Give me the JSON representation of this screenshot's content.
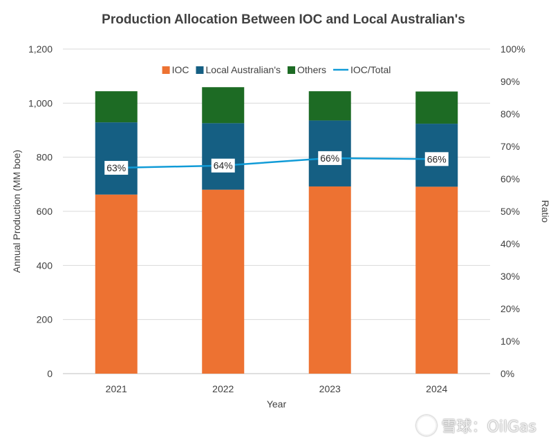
{
  "chart_data": {
    "type": "bar",
    "stacked": true,
    "title": "Production Allocation Between IOC and Local Australian's",
    "xlabel": "Year",
    "ylabel": "Annual Production (MM boe)",
    "y2label": "Ratio",
    "categories": [
      "2021",
      "2022",
      "2023",
      "2024"
    ],
    "ylim": [
      0,
      1200
    ],
    "yticks": [
      "0",
      "200",
      "400",
      "600",
      "800",
      "1,000",
      "1,200"
    ],
    "y2lim": [
      0,
      100
    ],
    "y2ticks": [
      "0%",
      "10%",
      "20%",
      "30%",
      "40%",
      "50%",
      "60%",
      "70%",
      "80%",
      "90%",
      "100%"
    ],
    "legend_position": "top",
    "grid": true,
    "series": [
      {
        "name": "IOC",
        "type": "bar",
        "color": "#ED7232",
        "values": [
          662,
          680,
          692,
          691
        ]
      },
      {
        "name": "Local Australian's",
        "type": "bar",
        "color": "#155F83",
        "values": [
          267,
          246,
          244,
          233
        ]
      },
      {
        "name": "Others",
        "type": "bar",
        "color": "#1D6B24",
        "values": [
          115,
          133,
          108,
          119
        ]
      },
      {
        "name": "IOC/Total",
        "type": "line",
        "axis": "right",
        "color": "#109BD7",
        "values": [
          63.4,
          64.1,
          66.4,
          66.1
        ],
        "labels": [
          "63%",
          "64%",
          "66%",
          "66%"
        ]
      }
    ]
  },
  "watermark": {
    "text": "雪球：OilGas"
  }
}
